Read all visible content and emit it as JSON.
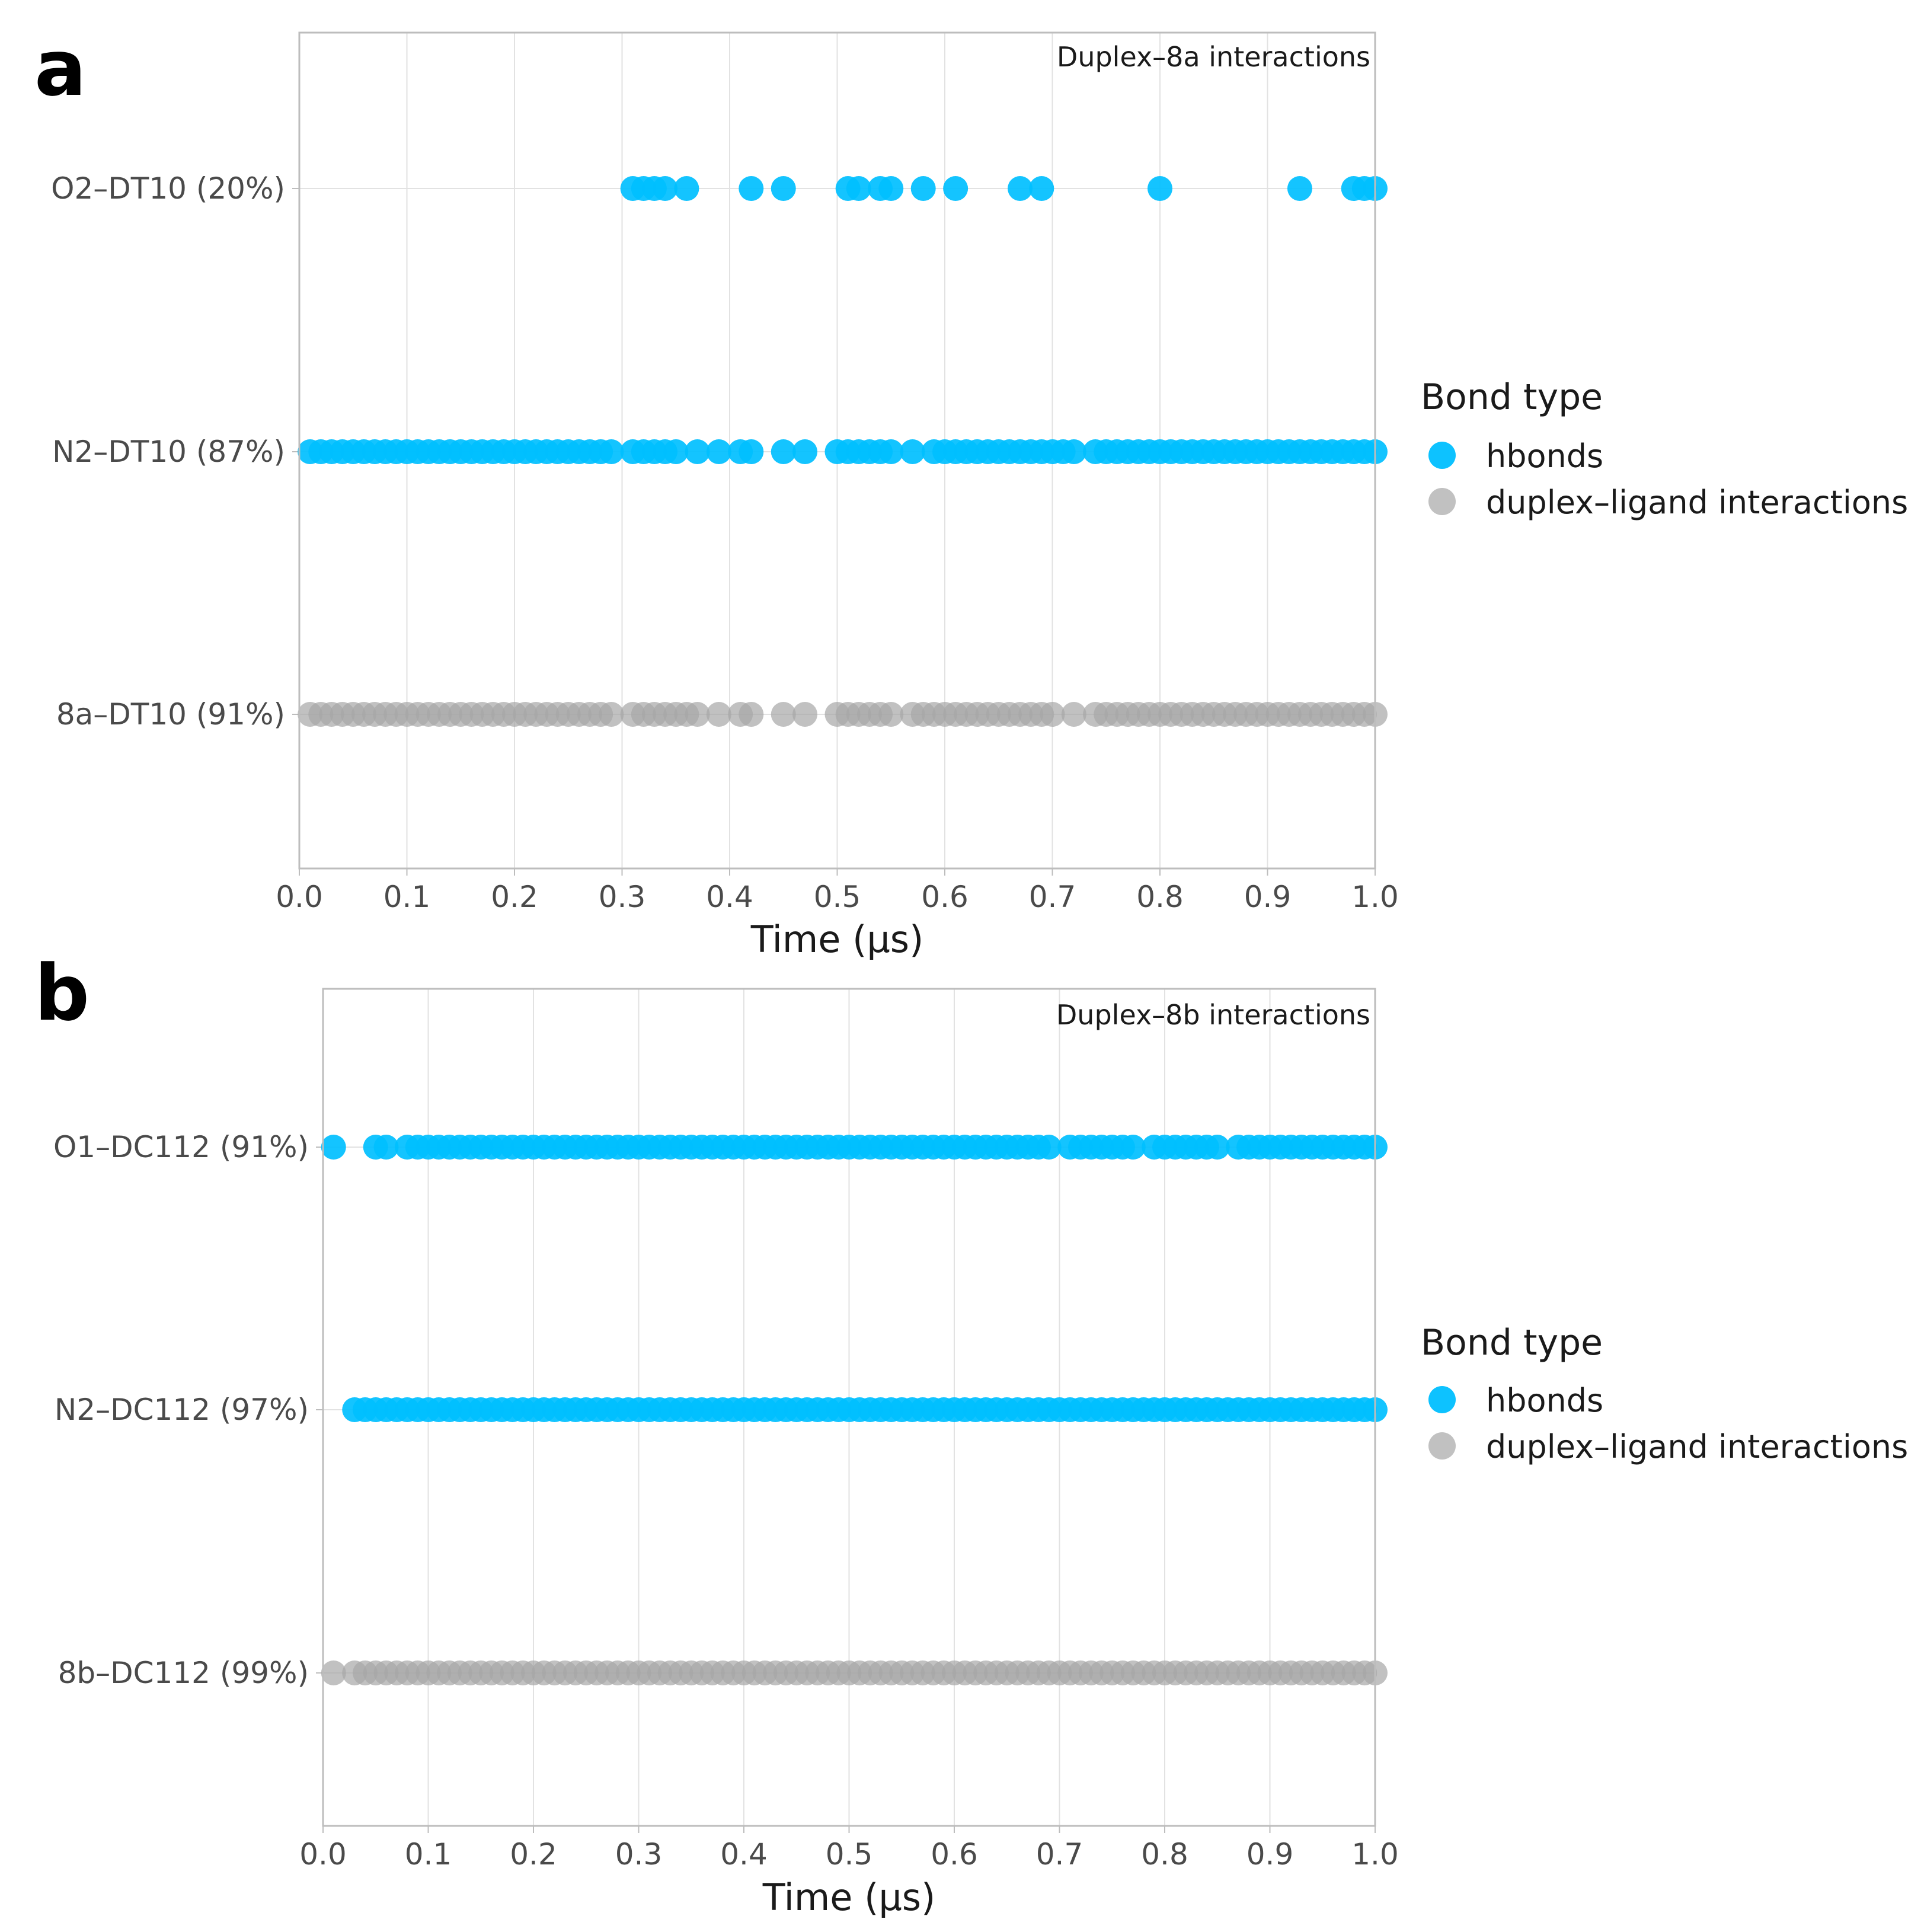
{
  "colors": {
    "hbonds": "#00bfff",
    "interactions": "#a6a6a6",
    "grid": "#e2e2e2",
    "frame": "#bdbdbd"
  },
  "chart_data": [
    {
      "panel": "a",
      "type": "scatter",
      "title": "Duplex–8a interactions",
      "xlabel": "Time (μs)",
      "xlim": [
        0.0,
        1.0
      ],
      "xticks": [
        "0.0",
        "0.1",
        "0.2",
        "0.3",
        "0.4",
        "0.5",
        "0.6",
        "0.7",
        "0.8",
        "0.9",
        "1.0"
      ],
      "legend": {
        "title": "Bond type",
        "items": [
          "hbonds",
          "duplex–ligand interactions"
        ]
      },
      "series": [
        {
          "name": "O2–DT10 (20%)",
          "type": "hbonds",
          "x": [
            0.31,
            0.32,
            0.33,
            0.34,
            0.36,
            0.42,
            0.45,
            0.51,
            0.52,
            0.54,
            0.55,
            0.58,
            0.61,
            0.67,
            0.69,
            0.8,
            0.93,
            0.98,
            0.99,
            1.0
          ]
        },
        {
          "name": "N2–DT10 (87%)",
          "type": "hbonds",
          "x": [
            0.01,
            0.02,
            0.03,
            0.04,
            0.05,
            0.06,
            0.07,
            0.08,
            0.09,
            0.1,
            0.11,
            0.12,
            0.13,
            0.14,
            0.15,
            0.16,
            0.17,
            0.18,
            0.19,
            0.2,
            0.21,
            0.22,
            0.23,
            0.24,
            0.25,
            0.26,
            0.27,
            0.28,
            0.29,
            0.31,
            0.32,
            0.33,
            0.34,
            0.35,
            0.37,
            0.39,
            0.41,
            0.42,
            0.45,
            0.47,
            0.5,
            0.51,
            0.52,
            0.53,
            0.54,
            0.55,
            0.57,
            0.59,
            0.6,
            0.61,
            0.62,
            0.63,
            0.64,
            0.65,
            0.66,
            0.67,
            0.68,
            0.69,
            0.7,
            0.71,
            0.72,
            0.74,
            0.75,
            0.76,
            0.77,
            0.78,
            0.79,
            0.8,
            0.81,
            0.82,
            0.83,
            0.84,
            0.85,
            0.86,
            0.87,
            0.88,
            0.89,
            0.9,
            0.91,
            0.92,
            0.93,
            0.94,
            0.95,
            0.96,
            0.97,
            0.98,
            0.99,
            1.0
          ]
        },
        {
          "name": "8a–DT10 (91%)",
          "type": "interactions",
          "x": [
            0.01,
            0.02,
            0.03,
            0.04,
            0.05,
            0.06,
            0.07,
            0.08,
            0.09,
            0.1,
            0.11,
            0.12,
            0.13,
            0.14,
            0.15,
            0.16,
            0.17,
            0.18,
            0.19,
            0.2,
            0.21,
            0.22,
            0.23,
            0.24,
            0.25,
            0.26,
            0.27,
            0.28,
            0.29,
            0.31,
            0.32,
            0.33,
            0.34,
            0.35,
            0.36,
            0.37,
            0.39,
            0.41,
            0.42,
            0.45,
            0.47,
            0.5,
            0.51,
            0.52,
            0.53,
            0.54,
            0.55,
            0.57,
            0.58,
            0.59,
            0.6,
            0.61,
            0.62,
            0.63,
            0.64,
            0.65,
            0.66,
            0.67,
            0.68,
            0.69,
            0.7,
            0.72,
            0.74,
            0.75,
            0.76,
            0.77,
            0.78,
            0.79,
            0.8,
            0.81,
            0.82,
            0.83,
            0.84,
            0.85,
            0.86,
            0.87,
            0.88,
            0.89,
            0.9,
            0.91,
            0.92,
            0.93,
            0.94,
            0.95,
            0.96,
            0.97,
            0.98,
            0.99,
            1.0
          ]
        }
      ]
    },
    {
      "panel": "b",
      "type": "scatter",
      "title": "Duplex–8b interactions",
      "xlabel": "Time (μs)",
      "xlim": [
        0.0,
        1.0
      ],
      "xticks": [
        "0.0",
        "0.1",
        "0.2",
        "0.3",
        "0.4",
        "0.5",
        "0.6",
        "0.7",
        "0.8",
        "0.9",
        "1.0"
      ],
      "legend": {
        "title": "Bond type",
        "items": [
          "hbonds",
          "duplex–ligand interactions"
        ]
      },
      "series": [
        {
          "name": "O1–DC112 (91%)",
          "type": "hbonds",
          "x": [
            0.01,
            0.05,
            0.06,
            0.08,
            0.09,
            0.1,
            0.11,
            0.12,
            0.13,
            0.14,
            0.15,
            0.16,
            0.17,
            0.18,
            0.19,
            0.2,
            0.21,
            0.22,
            0.23,
            0.24,
            0.25,
            0.26,
            0.27,
            0.28,
            0.29,
            0.3,
            0.31,
            0.32,
            0.33,
            0.34,
            0.35,
            0.36,
            0.37,
            0.38,
            0.39,
            0.4,
            0.41,
            0.42,
            0.43,
            0.44,
            0.45,
            0.46,
            0.47,
            0.48,
            0.49,
            0.5,
            0.51,
            0.52,
            0.53,
            0.54,
            0.55,
            0.56,
            0.57,
            0.58,
            0.59,
            0.6,
            0.61,
            0.62,
            0.63,
            0.64,
            0.65,
            0.66,
            0.67,
            0.68,
            0.69,
            0.71,
            0.72,
            0.73,
            0.74,
            0.75,
            0.76,
            0.77,
            0.79,
            0.8,
            0.81,
            0.82,
            0.83,
            0.84,
            0.85,
            0.87,
            0.88,
            0.89,
            0.9,
            0.91,
            0.92,
            0.93,
            0.94,
            0.95,
            0.96,
            0.97,
            0.98,
            0.99,
            1.0
          ]
        },
        {
          "name": "N2–DC112 (97%)",
          "type": "hbonds",
          "x": [
            0.03,
            0.04,
            0.05,
            0.06,
            0.07,
            0.08,
            0.09,
            0.1,
            0.11,
            0.12,
            0.13,
            0.14,
            0.15,
            0.16,
            0.17,
            0.18,
            0.19,
            0.2,
            0.21,
            0.22,
            0.23,
            0.24,
            0.25,
            0.26,
            0.27,
            0.28,
            0.29,
            0.3,
            0.31,
            0.32,
            0.33,
            0.34,
            0.35,
            0.36,
            0.37,
            0.38,
            0.39,
            0.4,
            0.41,
            0.42,
            0.43,
            0.44,
            0.45,
            0.46,
            0.47,
            0.48,
            0.49,
            0.5,
            0.51,
            0.52,
            0.53,
            0.54,
            0.55,
            0.56,
            0.57,
            0.58,
            0.59,
            0.6,
            0.61,
            0.62,
            0.63,
            0.64,
            0.65,
            0.66,
            0.67,
            0.68,
            0.69,
            0.7,
            0.71,
            0.72,
            0.73,
            0.74,
            0.75,
            0.76,
            0.77,
            0.78,
            0.79,
            0.8,
            0.81,
            0.82,
            0.83,
            0.84,
            0.85,
            0.86,
            0.87,
            0.88,
            0.89,
            0.9,
            0.91,
            0.92,
            0.93,
            0.94,
            0.95,
            0.96,
            0.97,
            0.98,
            0.99,
            1.0
          ]
        },
        {
          "name": "8b–DC112 (99%)",
          "type": "interactions",
          "x": [
            0.01,
            0.03,
            0.04,
            0.05,
            0.06,
            0.07,
            0.08,
            0.09,
            0.1,
            0.11,
            0.12,
            0.13,
            0.14,
            0.15,
            0.16,
            0.17,
            0.18,
            0.19,
            0.2,
            0.21,
            0.22,
            0.23,
            0.24,
            0.25,
            0.26,
            0.27,
            0.28,
            0.29,
            0.3,
            0.31,
            0.32,
            0.33,
            0.34,
            0.35,
            0.36,
            0.37,
            0.38,
            0.39,
            0.4,
            0.41,
            0.42,
            0.43,
            0.44,
            0.45,
            0.46,
            0.47,
            0.48,
            0.49,
            0.5,
            0.51,
            0.52,
            0.53,
            0.54,
            0.55,
            0.56,
            0.57,
            0.58,
            0.59,
            0.6,
            0.61,
            0.62,
            0.63,
            0.64,
            0.65,
            0.66,
            0.67,
            0.68,
            0.69,
            0.7,
            0.71,
            0.72,
            0.73,
            0.74,
            0.75,
            0.76,
            0.77,
            0.78,
            0.79,
            0.8,
            0.81,
            0.82,
            0.83,
            0.84,
            0.85,
            0.86,
            0.87,
            0.88,
            0.89,
            0.9,
            0.91,
            0.92,
            0.93,
            0.94,
            0.95,
            0.96,
            0.97,
            0.98,
            0.99,
            1.0
          ]
        }
      ]
    }
  ]
}
